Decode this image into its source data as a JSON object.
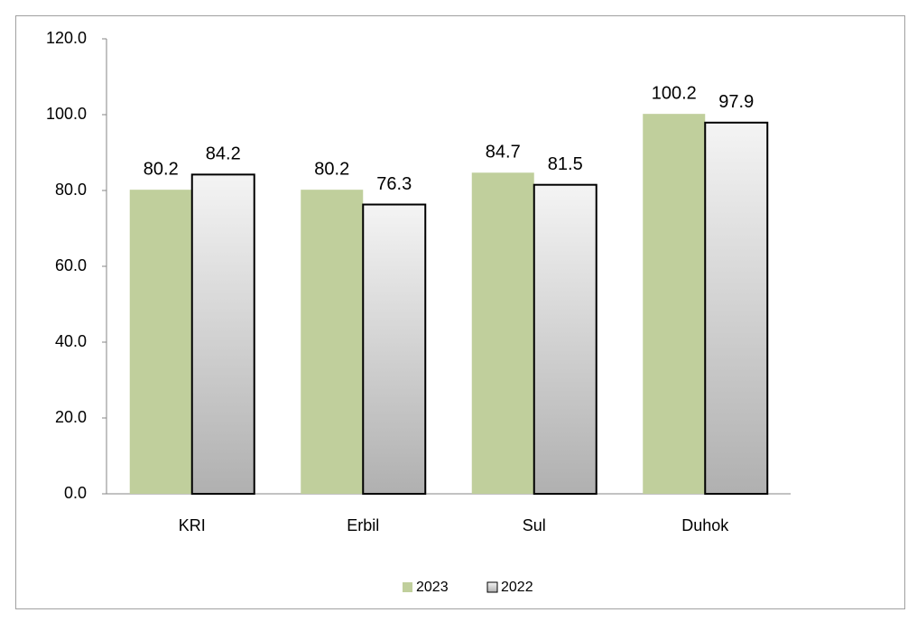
{
  "chart_data": {
    "type": "bar",
    "categories": [
      "KRI",
      "Erbil",
      "Sul",
      "Duhok"
    ],
    "series": [
      {
        "name": "2023",
        "color": "#c0cf9c",
        "values": [
          80.2,
          80.2,
          84.7,
          100.2
        ]
      },
      {
        "name": "2022",
        "color": "#d4d4d4",
        "values": [
          84.2,
          76.3,
          81.5,
          97.9
        ]
      }
    ],
    "ylim": [
      0,
      120
    ],
    "yticks": [
      {
        "value": 0,
        "label": "0.0"
      },
      {
        "value": 20,
        "label": "20.0"
      },
      {
        "value": 40,
        "label": "40.0"
      },
      {
        "value": 60,
        "label": "60.0"
      },
      {
        "value": 80,
        "label": "80.0"
      },
      {
        "value": 100,
        "label": "100.0"
      },
      {
        "value": 120,
        "label": "120.0"
      }
    ],
    "grid": false,
    "legend": "bottom"
  }
}
